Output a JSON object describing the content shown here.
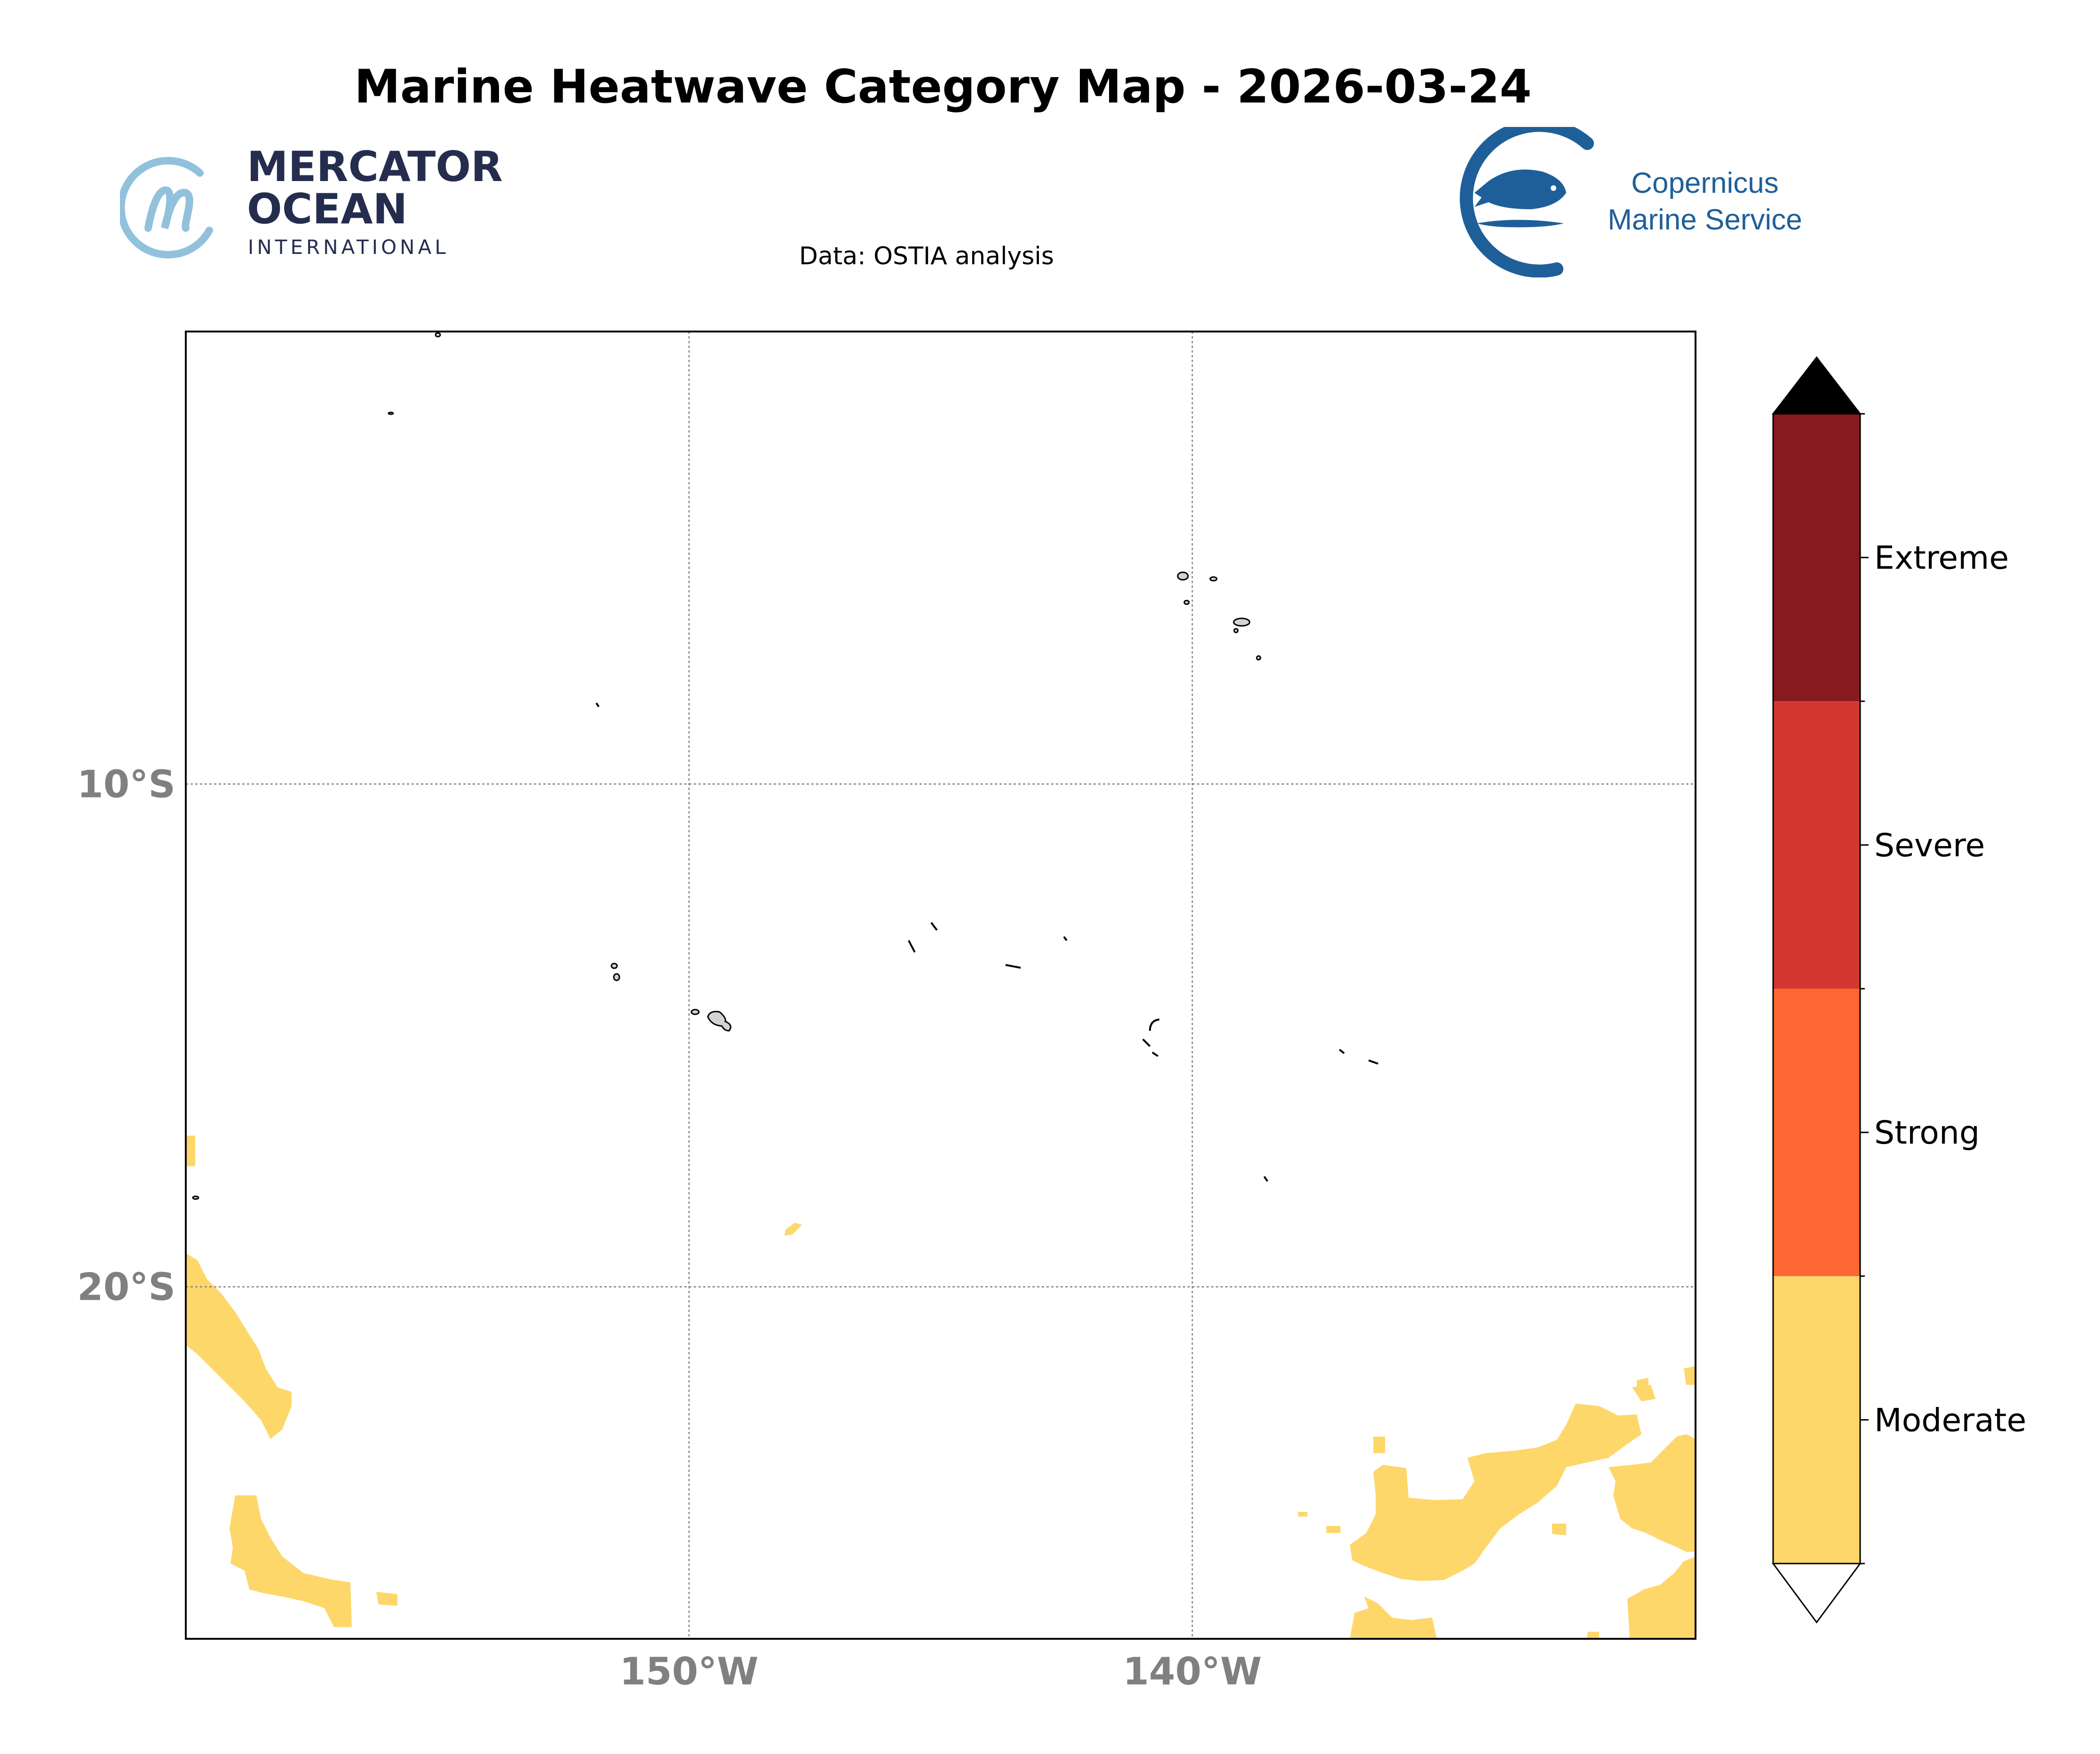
{
  "title": "Marine Heatwave Category Map - 2026-03-24",
  "subtitle": "Data: OSTIA analysis",
  "logos": {
    "mercator": {
      "line1": "MERCATOR",
      "line2": "OCEAN",
      "line3": "INTERNATIONAL",
      "color": "#252d4f",
      "mark_color": "#92c1dc"
    },
    "copernicus": {
      "line1": "Copernicus",
      "line2": "Marine Service",
      "color": "#1f5f99"
    }
  },
  "map": {
    "extent": {
      "lon_min": -160,
      "lon_max": -130,
      "lat_min": -27,
      "lat_max": -1
    },
    "gridlines": {
      "lons": [
        -150,
        -140
      ],
      "lats": [
        -10,
        -20
      ],
      "style": "dotted",
      "color": "#808080"
    },
    "lon_ticks": [
      {
        "value": -150,
        "label": "150°W"
      },
      {
        "value": -140,
        "label": "140°W"
      }
    ],
    "lat_ticks": [
      {
        "value": -10,
        "label": "10°S"
      },
      {
        "value": -20,
        "label": "20°S"
      }
    ],
    "land_fill": "#d3d3d3",
    "moderate_color": "#fed76a"
  },
  "colorbar": {
    "categories": [
      {
        "label": "Moderate",
        "color": "#fed76a"
      },
      {
        "label": "Strong",
        "color": "#ff6633"
      },
      {
        "label": "Severe",
        "color": "#d2382f"
      },
      {
        "label": "Extreme",
        "color": "#891920"
      }
    ],
    "over_color": "#000000",
    "under_color": "#ffffff"
  }
}
